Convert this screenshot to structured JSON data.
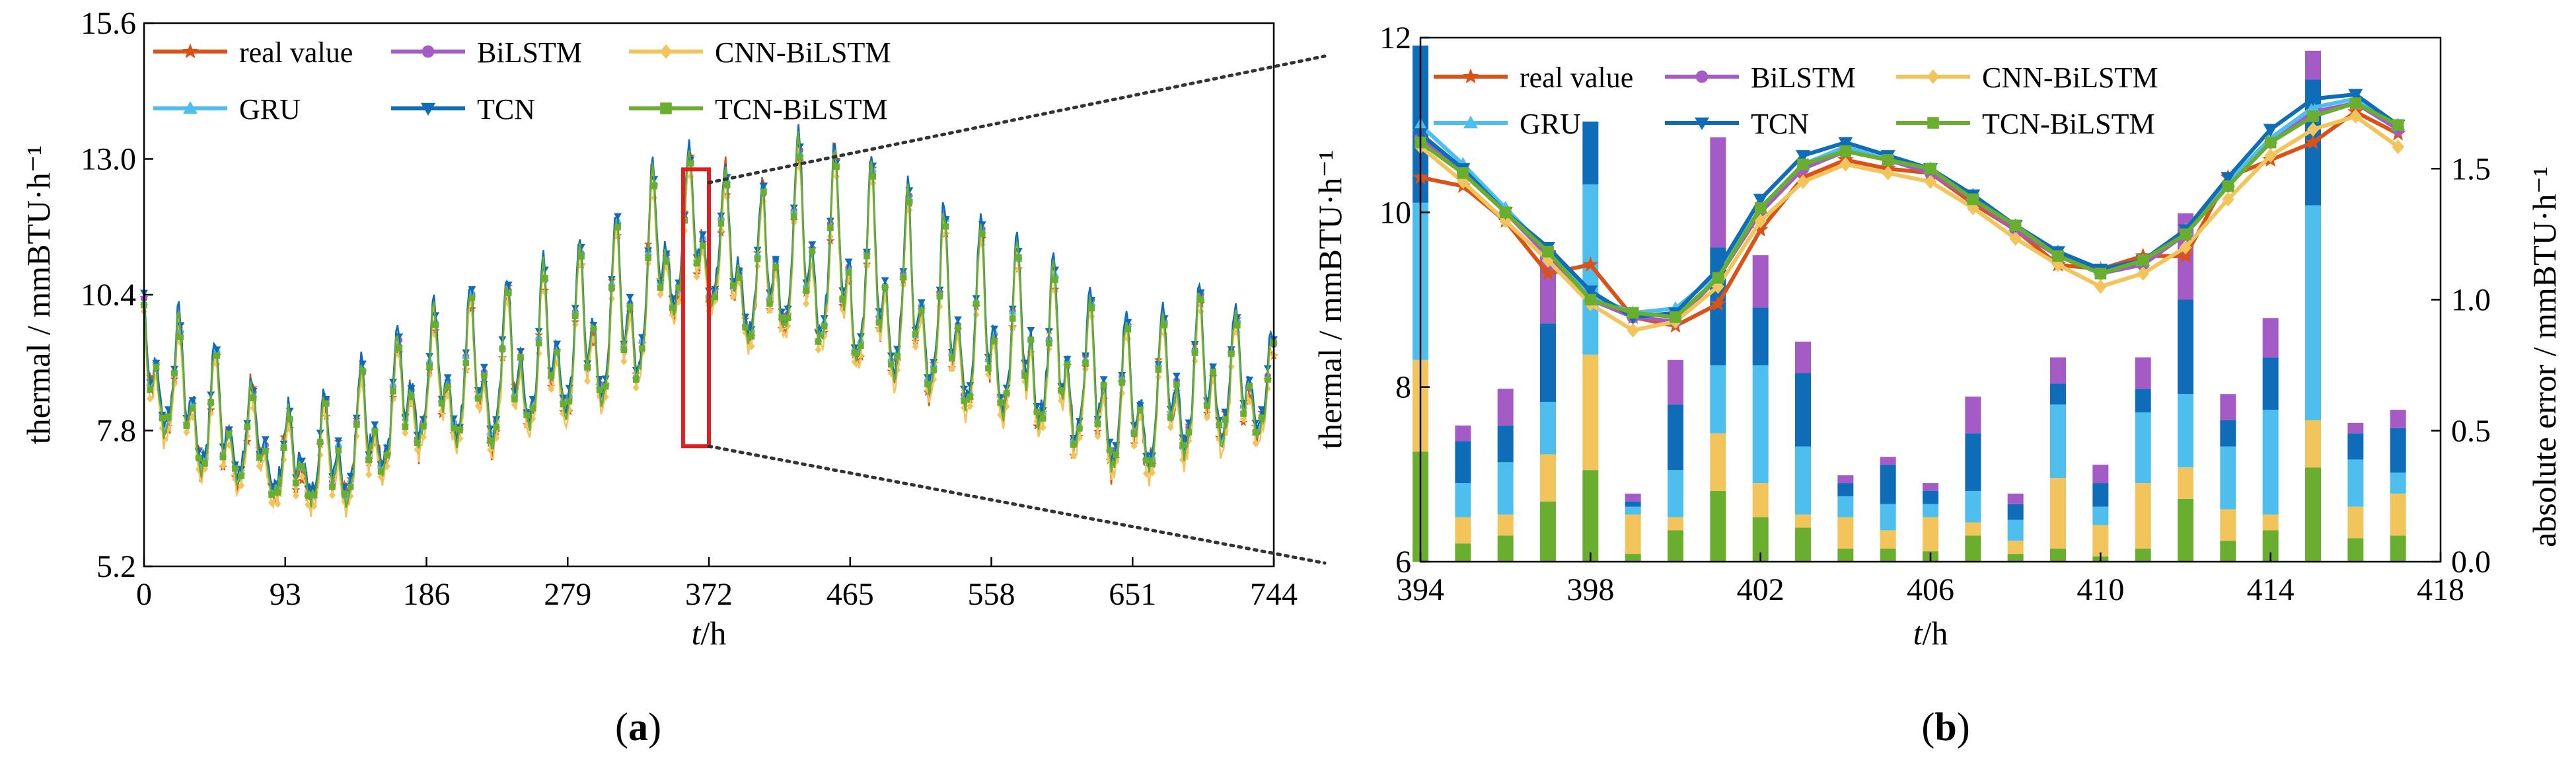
{
  "colors": {
    "real value": "#d95319",
    "BiLSTM": "#a55bc6",
    "CNN-BiLSTM": "#f2c45c",
    "GRU": "#4dbeee",
    "TCN": "#0e6cb8",
    "TCN-BiLSTM": "#6aae2f",
    "zoom_box": "#e02020"
  },
  "chart_data": [
    {
      "panel": "a",
      "caption": "(a)",
      "type": "line",
      "xlabel": "t/h",
      "ylabel": "thermal / mmBTU·h⁻¹",
      "xlim": [
        0,
        744
      ],
      "ylim": [
        5.2,
        15.6
      ],
      "xticks": [
        0,
        93,
        186,
        279,
        372,
        465,
        558,
        651,
        744
      ],
      "yticks": [
        5.2,
        7.8,
        10.4,
        13.0,
        15.6
      ],
      "ytick_labels": [
        "5.2",
        "7.8",
        "10.4",
        "13.0",
        "15.6"
      ],
      "grid": false,
      "legend_position": "top",
      "zoom_region": {
        "x": [
          355,
          372
        ],
        "y": [
          7.5,
          12.8
        ]
      },
      "series": [
        {
          "name": "real value",
          "marker": "star"
        },
        {
          "name": "BiLSTM",
          "marker": "circle"
        },
        {
          "name": "CNN-BiLSTM",
          "marker": "diamond"
        },
        {
          "name": "GRU",
          "marker": "triangle-up"
        },
        {
          "name": "TCN",
          "marker": "triangle-down"
        },
        {
          "name": "TCN-BiLSTM",
          "marker": "square"
        }
      ],
      "envelope_approx": {
        "x": [
          0,
          40,
          93,
          130,
          186,
          230,
          279,
          320,
          350,
          372,
          400,
          430,
          465,
          500,
          558,
          600,
          640,
          651,
          700,
          744
        ],
        "peak": [
          10.3,
          9.5,
          8.0,
          8.5,
          10.0,
          10.5,
          11.0,
          12.0,
          13.2,
          13.0,
          12.0,
          13.3,
          13.0,
          12.2,
          11.5,
          10.8,
          10.0,
          9.8,
          10.4,
          9.5
        ],
        "trough": [
          7.8,
          6.5,
          6.2,
          6.0,
          7.2,
          7.0,
          7.5,
          8.0,
          9.5,
          9.8,
          9.0,
          9.0,
          8.5,
          8.0,
          7.5,
          7.2,
          6.5,
          6.3,
          7.0,
          7.5
        ]
      }
    },
    {
      "panel": "b",
      "caption": "(b)",
      "type": "line",
      "xlabel": "t/h",
      "ylabel": "thermal / mmBTU·h⁻¹",
      "ylabel_right": "absolute error / mmBTU·h⁻¹",
      "xlim": [
        394,
        418
      ],
      "ylim": [
        6,
        12
      ],
      "ylim_right": [
        0,
        2.0
      ],
      "xticks": [
        394,
        398,
        402,
        406,
        410,
        414,
        418
      ],
      "yticks": [
        6,
        8,
        10,
        12
      ],
      "yticks_right": [
        0.0,
        0.5,
        1.0,
        1.5
      ],
      "ytick_right_labels": [
        "0.0",
        "0.5",
        "1.0",
        "1.5"
      ],
      "grid": false,
      "legend_position": "top",
      "x": [
        394,
        395,
        396,
        397,
        398,
        399,
        400,
        401,
        402,
        403,
        404,
        405,
        406,
        407,
        408,
        409,
        410,
        411,
        412,
        413,
        414,
        415,
        416,
        417
      ],
      "series": [
        {
          "name": "real value",
          "marker": "star",
          "values": [
            10.4,
            10.3,
            9.9,
            9.3,
            9.4,
            8.8,
            8.7,
            8.95,
            9.8,
            10.4,
            10.6,
            10.5,
            10.45,
            10.1,
            9.8,
            9.4,
            9.35,
            9.5,
            9.5,
            10.4,
            10.6,
            10.8,
            11.15,
            10.9
          ]
        },
        {
          "name": "BiLSTM",
          "marker": "circle",
          "values": [
            10.85,
            10.45,
            10.0,
            9.5,
            9.0,
            8.8,
            8.75,
            9.25,
            10.0,
            10.5,
            10.7,
            10.6,
            10.45,
            10.15,
            9.8,
            9.5,
            9.3,
            9.4,
            9.75,
            10.3,
            10.8,
            11.15,
            11.25,
            10.95
          ]
        },
        {
          "name": "CNN-BiLSTM",
          "marker": "diamond",
          "values": [
            10.75,
            10.35,
            9.9,
            9.45,
            8.95,
            8.65,
            8.75,
            9.15,
            9.9,
            10.35,
            10.55,
            10.45,
            10.35,
            10.05,
            9.7,
            9.4,
            9.15,
            9.3,
            9.6,
            10.15,
            10.65,
            10.95,
            11.1,
            10.75
          ]
        },
        {
          "name": "GRU",
          "marker": "triangle-up",
          "values": [
            11.0,
            10.55,
            10.05,
            9.55,
            9.05,
            8.85,
            8.9,
            9.3,
            10.05,
            10.55,
            10.75,
            10.6,
            10.5,
            10.2,
            9.85,
            9.55,
            9.35,
            9.45,
            9.8,
            10.35,
            10.85,
            11.2,
            11.3,
            11.0
          ]
        },
        {
          "name": "TCN",
          "marker": "triangle-down",
          "values": [
            10.9,
            10.5,
            10.0,
            9.6,
            9.1,
            8.8,
            8.85,
            9.35,
            10.15,
            10.65,
            10.8,
            10.65,
            10.5,
            10.2,
            9.85,
            9.55,
            9.35,
            9.45,
            9.8,
            10.4,
            10.95,
            11.3,
            11.35,
            11.0
          ]
        },
        {
          "name": "TCN-BiLSTM",
          "marker": "square",
          "values": [
            10.8,
            10.45,
            10.0,
            9.55,
            9.0,
            8.85,
            8.8,
            9.25,
            10.05,
            10.55,
            10.7,
            10.6,
            10.5,
            10.15,
            9.85,
            9.5,
            9.3,
            9.45,
            9.75,
            10.3,
            10.8,
            11.1,
            11.25,
            11.0
          ]
        }
      ],
      "error_bars": {
        "type": "bar",
        "stacked": true,
        "stack_order": [
          "TCN-BiLSTM",
          "CNN-BiLSTM",
          "GRU",
          "TCN",
          "BiLSTM"
        ],
        "x": [
          394,
          395,
          396,
          397,
          398,
          399,
          400,
          401,
          402,
          403,
          404,
          405,
          406,
          407,
          408,
          409,
          410,
          411,
          412,
          413,
          414,
          415,
          416,
          417
        ],
        "series": [
          {
            "name": "TCN-BiLSTM",
            "values": [
              0.42,
              0.07,
              0.1,
              0.23,
              0.35,
              0.03,
              0.12,
              0.27,
              0.17,
              0.13,
              0.05,
              0.05,
              0.04,
              0.1,
              0.03,
              0.05,
              0.02,
              0.05,
              0.24,
              0.08,
              0.12,
              0.36,
              0.09,
              0.1
            ]
          },
          {
            "name": "CNN-BiLSTM",
            "values": [
              0.35,
              0.1,
              0.08,
              0.18,
              0.44,
              0.15,
              0.05,
              0.22,
              0.13,
              0.05,
              0.12,
              0.07,
              0.13,
              0.05,
              0.05,
              0.27,
              0.12,
              0.25,
              0.12,
              0.12,
              0.06,
              0.18,
              0.12,
              0.16
            ]
          },
          {
            "name": "GRU",
            "values": [
              0.6,
              0.13,
              0.2,
              0.2,
              0.65,
              0.03,
              0.18,
              0.26,
              0.45,
              0.26,
              0.08,
              0.1,
              0.05,
              0.12,
              0.08,
              0.28,
              0.07,
              0.27,
              0.28,
              0.24,
              0.4,
              0.82,
              0.18,
              0.08
            ]
          },
          {
            "name": "TCN",
            "values": [
              0.6,
              0.16,
              0.14,
              0.3,
              0.24,
              0.02,
              0.25,
              0.45,
              0.22,
              0.28,
              0.05,
              0.15,
              0.05,
              0.22,
              0.06,
              0.08,
              0.09,
              0.09,
              0.36,
              0.1,
              0.2,
              0.48,
              0.1,
              0.17
            ]
          },
          {
            "name": "BiLSTM",
            "values": [
              0.0,
              0.06,
              0.14,
              0.28,
              0.0,
              0.03,
              0.17,
              0.42,
              0.2,
              0.12,
              0.03,
              0.03,
              0.03,
              0.14,
              0.04,
              0.1,
              0.07,
              0.12,
              0.33,
              0.1,
              0.15,
              0.11,
              0.04,
              0.07
            ]
          }
        ]
      }
    }
  ]
}
